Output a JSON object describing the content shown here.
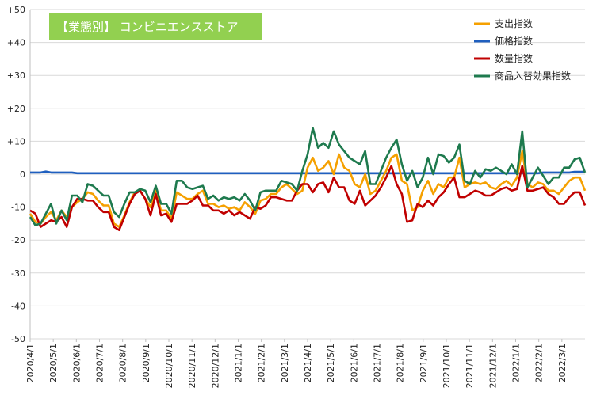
{
  "chart_data": {
    "type": "line",
    "title": "【業態別】 コンビニエンスストア",
    "title_bg_color": "#92d050",
    "ylim": [
      -50,
      50
    ],
    "y_ticks": [
      50,
      40,
      30,
      20,
      10,
      0,
      -10,
      -20,
      -30,
      -40,
      -50
    ],
    "y_tick_labels": [
      "+50",
      "+40",
      "+30",
      "+20",
      "+10",
      "0",
      "-10",
      "-20",
      "-30",
      "-40",
      "-50"
    ],
    "x_tick_labels": [
      "2020/4/1",
      "2020/5/1",
      "2020/6/1",
      "2020/7/1",
      "2020/8/1",
      "2020/9/1",
      "2020/10/1",
      "2020/11/1",
      "2020/12/1",
      "2021/1/1",
      "2021/2/1",
      "2021/3/1",
      "2021/4/1",
      "2021/5/1",
      "2021/6/1",
      "2021/7/1",
      "2021/8/1",
      "2021/9/1",
      "2021/10/1",
      "2021/11/1",
      "2021/12/1",
      "2022/1/1",
      "2022/2/1",
      "2022/3/1"
    ],
    "legend_position": "top-right",
    "grid": "horizontal",
    "series": [
      {
        "name": "支出指数",
        "color": "#f5a000",
        "values": [
          -12,
          -14.5,
          -15,
          -13,
          -11.5,
          -14,
          -11,
          -13,
          -10,
          -8.5,
          -7.5,
          -5.5,
          -6,
          -8,
          -9.5,
          -9.5,
          -15,
          -16,
          -12.5,
          -8.5,
          -5.5,
          -5,
          -7.5,
          -10,
          -5,
          -11,
          -11,
          -13.5,
          -5.5,
          -6.5,
          -7.5,
          -7.5,
          -6,
          -5,
          -9,
          -9,
          -10,
          -9.5,
          -10.5,
          -10,
          -11,
          -8.5,
          -10,
          -12,
          -8,
          -7.5,
          -6,
          -6,
          -4,
          -3,
          -4.5,
          -6,
          -5,
          2,
          5,
          1,
          2,
          4,
          0,
          6,
          2,
          1,
          -3,
          -4,
          0,
          -6,
          -5,
          -2,
          1,
          5,
          6,
          -2,
          -3,
          -11,
          -10,
          -5,
          -2,
          -6,
          -3,
          -4,
          -1,
          -1,
          5,
          -4,
          -3,
          -2.5,
          -3,
          -2.5,
          -4,
          -4.5,
          -3,
          -2,
          -3.5,
          -1,
          7,
          -3,
          -4,
          -2.5,
          -3,
          -5,
          -5,
          -6,
          -4,
          -2,
          -1,
          -1,
          -5
        ]
      },
      {
        "name": "価格指数",
        "color": "#1f5fbf",
        "values": [
          0.5,
          0.5,
          0.5,
          0.8,
          0.5,
          0.5,
          0.5,
          0.5,
          0.5,
          0.3,
          0.3,
          0.3,
          0.3,
          0.3,
          0.3,
          0.3,
          0.3,
          0.3,
          0.3,
          0.3,
          0.3,
          0.3,
          0.3,
          0.3,
          0.3,
          0.3,
          0.3,
          0.3,
          0.3,
          0.3,
          0.3,
          0.3,
          0.3,
          0.3,
          0.3,
          0.3,
          0.3,
          0.3,
          0.3,
          0.3,
          0.3,
          0.3,
          0.3,
          0.3,
          0.3,
          0.3,
          0.3,
          0.3,
          0.3,
          0.3,
          0.3,
          0.3,
          0.3,
          0.3,
          0.3,
          0.3,
          0.3,
          0.3,
          0.3,
          0.3,
          0.3,
          0.3,
          0.3,
          0.3,
          0.3,
          0.3,
          0.3,
          0.3,
          0.3,
          0.3,
          0.3,
          0.3,
          0.3,
          0.3,
          0.3,
          0.3,
          0.3,
          0.3,
          0.3,
          0.3,
          0.3,
          0.3,
          0.3,
          0.3,
          0.3,
          0.3,
          0.3,
          0.3,
          0.3,
          0.3,
          0.3,
          0.3,
          0.3,
          0.3,
          0.3,
          0.3,
          0.3,
          0.3,
          0.5,
          0.5,
          0.5,
          0.5,
          0.5,
          0.5,
          0.7,
          0.7,
          0.7
        ]
      },
      {
        "name": "数量指数",
        "color": "#c00000",
        "values": [
          -11,
          -12,
          -16,
          -15,
          -14,
          -14.5,
          -13,
          -16,
          -10,
          -7.5,
          -7.5,
          -8,
          -8,
          -10,
          -11.5,
          -11.5,
          -16,
          -17,
          -13,
          -9,
          -6,
          -5,
          -7.5,
          -12.5,
          -6,
          -12.5,
          -12,
          -14.5,
          -9,
          -9,
          -9,
          -8,
          -6.5,
          -9.5,
          -9.5,
          -11,
          -11,
          -12,
          -11,
          -12.5,
          -11.5,
          -12.5,
          -13.5,
          -10,
          -10.5,
          -9.5,
          -7,
          -7,
          -7.5,
          -8,
          -8,
          -5,
          -3,
          -3,
          -5.5,
          -3,
          -2.5,
          -5.5,
          -1,
          -4,
          -4,
          -8,
          -9,
          -5,
          -9.5,
          -8,
          -6.5,
          -4,
          -1,
          2.5,
          -3,
          -6,
          -14.5,
          -14,
          -9,
          -10,
          -8,
          -9.5,
          -7,
          -5.5,
          -3,
          -1,
          -7,
          -7,
          -6,
          -5,
          -5.5,
          -6.5,
          -6.5,
          -5.5,
          -4.5,
          -4,
          -5,
          -4.5,
          2.5,
          -5,
          -5,
          -4.5,
          -4,
          -6,
          -7,
          -9,
          -9,
          -7,
          -5.5,
          -5.5,
          -9.5
        ]
      },
      {
        "name": "商品入替効果指数",
        "color": "#1e7a4e",
        "values": [
          -13,
          -15.5,
          -15,
          -12,
          -9,
          -15,
          -11,
          -14,
          -6.5,
          -6.5,
          -8.5,
          -3,
          -3.5,
          -5,
          -6.5,
          -6.5,
          -11.5,
          -13,
          -9,
          -5.5,
          -5.5,
          -4.5,
          -5,
          -8.5,
          -3.5,
          -9,
          -9,
          -12,
          -2,
          -2,
          -4,
          -4.5,
          -4,
          -3.5,
          -7.5,
          -6.5,
          -8,
          -7,
          -7.5,
          -7,
          -8,
          -6,
          -8,
          -11,
          -5.5,
          -5,
          -5,
          -5,
          -2,
          -2.5,
          -3,
          -5,
          1,
          6,
          14,
          8,
          9.5,
          8,
          13,
          9,
          7,
          5,
          4,
          3,
          7,
          -3,
          -3,
          1,
          5,
          8,
          10.5,
          3,
          -2,
          1,
          -4,
          -1,
          5,
          0,
          6,
          5.5,
          3.5,
          5,
          9,
          -2,
          -3,
          1,
          -1,
          1.5,
          1,
          2,
          1,
          0,
          3,
          0,
          13,
          -4,
          -1,
          2,
          -0.5,
          -3,
          -1,
          -1,
          2,
          2,
          4.5,
          5,
          0.5
        ]
      }
    ]
  }
}
